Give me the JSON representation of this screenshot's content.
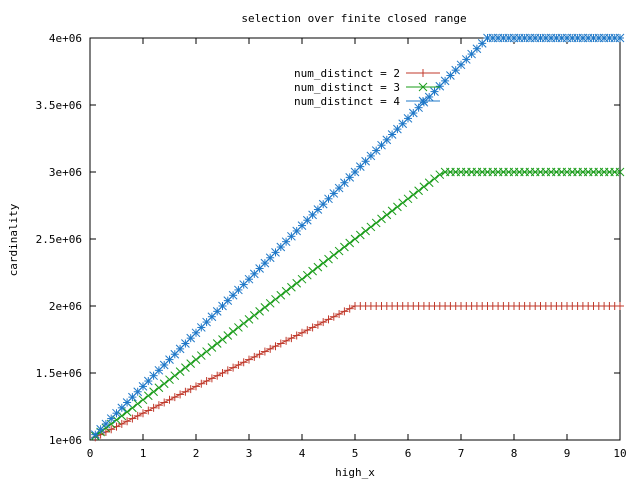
{
  "chart_data": {
    "type": "line",
    "title": "selection over finite closed range",
    "xlabel": "high_x",
    "ylabel": "cardinality",
    "xlim": [
      0,
      10
    ],
    "ylim": [
      1000000,
      4000000
    ],
    "x_ticks": [
      "0",
      "1",
      "2",
      "3",
      "4",
      "5",
      "6",
      "7",
      "8",
      "9",
      "10"
    ],
    "y_ticks": [
      "1e+06",
      "1.5e+06",
      "2e+06",
      "2.5e+06",
      "3e+06",
      "3.5e+06",
      "4e+06"
    ],
    "grid": false,
    "legend_position": "top-center",
    "series": [
      {
        "name": "num_distinct = 2",
        "color": "#c0392b",
        "marker": "plus",
        "x_start": 0.1,
        "x_step": 0.1,
        "x_end": 10.0,
        "formula": "min(2e6, 1e6 + 2e5 * x)",
        "y_start": 1020000,
        "y_max": 2000000
      },
      {
        "name": "num_distinct = 3",
        "color": "#1a9c1a",
        "marker": "cross",
        "x_start": 0.1,
        "x_step": 0.1,
        "x_end": 10.0,
        "formula": "min(3e6, 1e6 + 3e5 * x)",
        "y_start": 1030000,
        "y_max": 3000000
      },
      {
        "name": "num_distinct = 4",
        "color": "#1f78c8",
        "marker": "star",
        "x_start": 0.1,
        "x_step": 0.1,
        "x_end": 10.0,
        "formula": "min(4e6, 1e6 + 4e5 * x)",
        "y_start": 1040000,
        "y_max": 4000000
      }
    ]
  }
}
